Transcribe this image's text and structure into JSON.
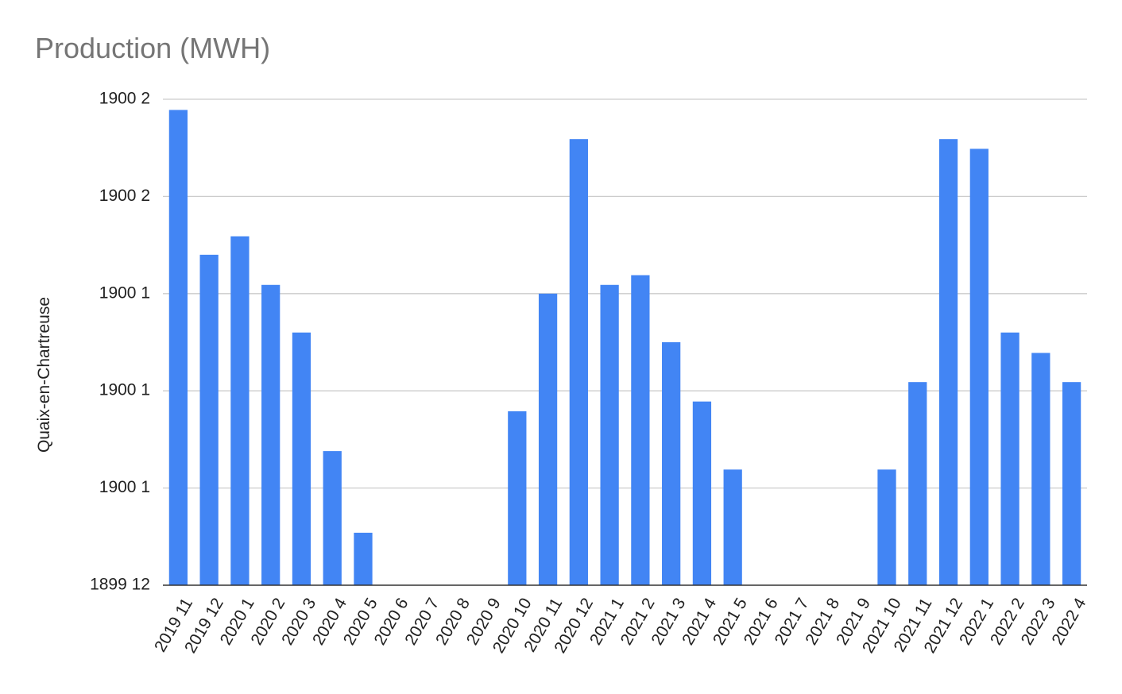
{
  "chart_data": {
    "type": "bar",
    "title": "Production (MWH)",
    "xlabel": "",
    "ylabel": "Quaix-en-Chartreuse",
    "y_tick_labels": [
      "1899 12",
      "1900 1",
      "1900 1",
      "1900 1",
      "1900 2",
      "1900 2"
    ],
    "ylim": [
      0,
      5
    ],
    "grid": true,
    "legend": "none",
    "bar_color": "#4285f4",
    "categories": [
      "2019 11",
      "2019 12",
      "2020 1",
      "2020 2",
      "2020 3",
      "2020 4",
      "2020 5",
      "2020 6",
      "2020 7",
      "2020 8",
      "2020 9",
      "2020 10",
      "2020 11",
      "2020 12",
      "2021 1",
      "2021 2",
      "2021 3",
      "2021 4",
      "2021 5",
      "2021 6",
      "2021 7",
      "2021 8",
      "2021 9",
      "2021 10",
      "2021 11",
      "2021 12",
      "2022 1",
      "2022 2",
      "2022 3",
      "2022 4"
    ],
    "values": [
      4.89,
      3.4,
      3.59,
      3.09,
      2.6,
      1.38,
      0.54,
      0,
      0,
      0,
      0,
      1.79,
      3.0,
      4.59,
      3.09,
      3.19,
      2.5,
      1.89,
      1.19,
      0,
      0,
      0,
      0,
      1.19,
      2.09,
      4.59,
      4.49,
      2.6,
      2.39,
      2.09
    ]
  }
}
